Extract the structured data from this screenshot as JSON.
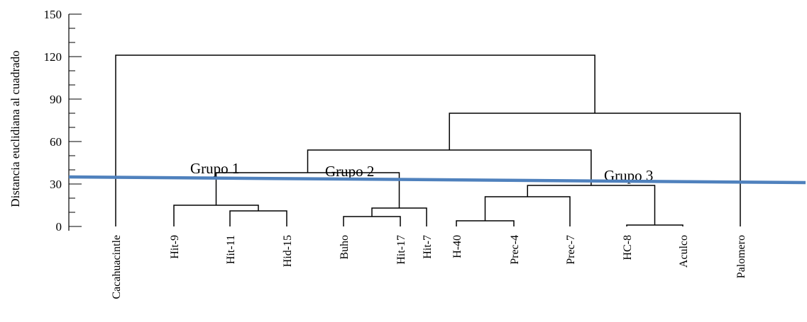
{
  "chart_data": {
    "type": "dendrogram",
    "ylabel": "Distancia euclidiana al cuadrado",
    "ylim": [
      0,
      150
    ],
    "yticks": [
      0,
      30,
      60,
      90,
      120,
      150
    ],
    "leaves": [
      "Cacahuacintle",
      "Hit-9",
      "Hit-11",
      "Hid-15",
      "Buho",
      "Hit-17",
      "Hit-7",
      "H-40",
      "Prec-4",
      "Prec-7",
      "HC-8",
      "Aculco",
      "Palomero"
    ],
    "merges": [
      {
        "id": "n1",
        "left": "Hit-11",
        "right": "Hid-15",
        "height": 11
      },
      {
        "id": "n2",
        "left": "Hit-9",
        "right": "n1",
        "height": 15
      },
      {
        "id": "n3",
        "left": "Buho",
        "right": "Hit-17",
        "height": 7
      },
      {
        "id": "n4",
        "left": "n3",
        "right": "Hit-7",
        "height": 13
      },
      {
        "id": "n5",
        "left": "n2",
        "right": "n4",
        "height": 38
      },
      {
        "id": "n6",
        "left": "H-40",
        "right": "Prec-4",
        "height": 4
      },
      {
        "id": "n7",
        "left": "n6",
        "right": "Prec-7",
        "height": 21
      },
      {
        "id": "n8",
        "left": "HC-8",
        "right": "Aculco",
        "height": 1
      },
      {
        "id": "n9",
        "left": "n7",
        "right": "n8",
        "height": 29
      },
      {
        "id": "n10",
        "left": "n5",
        "right": "n9",
        "height": 54
      },
      {
        "id": "n11",
        "left": "n10",
        "right": "Palomero",
        "height": 80
      },
      {
        "id": "n12",
        "left": "Cacahuacintle",
        "right": "n11",
        "height": 121
      }
    ],
    "cut_line": {
      "y_left": 35,
      "y_right": 31,
      "color": "#4f81bd"
    },
    "groups": [
      {
        "label": "Grupo 1",
        "y": 38
      },
      {
        "label": "Grupo 2",
        "y": 36
      },
      {
        "label": "Grupo 3",
        "y": 33
      }
    ]
  }
}
